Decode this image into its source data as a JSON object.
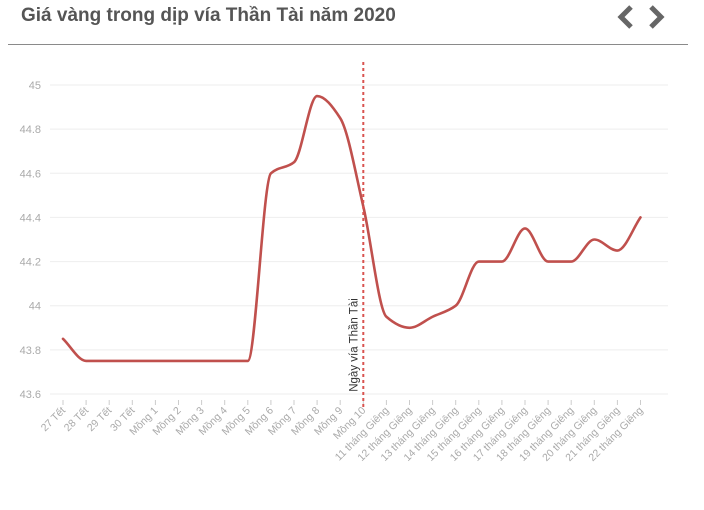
{
  "header": {
    "title": "Giá vàng trong dịp vía Thần Tài năm 2020",
    "prev_icon": "chevron-left-icon",
    "next_icon": "chevron-right-icon"
  },
  "colors": {
    "line": "#c0504d",
    "marker_line": "#d9534f",
    "tick_text": "#aaaaaa",
    "grid": "#eeeeee",
    "title": "#555555",
    "nav": "#666666"
  },
  "chart_data": {
    "type": "line",
    "title": "Giá vàng trong dịp vía Thần Tài năm 2020",
    "xlabel": "",
    "ylabel": "",
    "categories": [
      "27 Tết",
      "28 Tết",
      "29 Tết",
      "30 Tết",
      "Mồng 1",
      "Mồng 2",
      "Mồng 3",
      "Mồng 4",
      "Mồng 5",
      "Mồng 6",
      "Mồng 7",
      "Mồng 8",
      "Mồng 9",
      "Mồng 10",
      "11 tháng Giêng",
      "12 tháng Giêng",
      "13 tháng Giêng",
      "14 tháng Giêng",
      "15 tháng Giêng",
      "16 tháng Giêng",
      "17 tháng Giêng",
      "18 tháng Giêng",
      "19 tháng Giêng",
      "20 tháng Giêng",
      "21 tháng Giêng",
      "22 tháng Giêng"
    ],
    "series": [
      {
        "values": [
          43.85,
          43.75,
          43.75,
          43.75,
          43.75,
          43.75,
          43.75,
          43.75,
          43.75,
          44.6,
          44.65,
          44.95,
          44.85,
          44.45,
          43.95,
          43.9,
          43.95,
          44.0,
          44.2,
          44.2,
          44.35,
          44.2,
          44.2,
          44.3,
          44.25,
          44.4
        ]
      }
    ],
    "ylim": [
      43.6,
      45
    ],
    "yticks": [
      "43.6",
      "43.8",
      "44",
      "44.2",
      "44.4",
      "44.6",
      "44.8",
      "45"
    ],
    "grid": true,
    "annotation": {
      "category": "Mồng 10",
      "label": "Ngày vía Thần Tài"
    }
  }
}
